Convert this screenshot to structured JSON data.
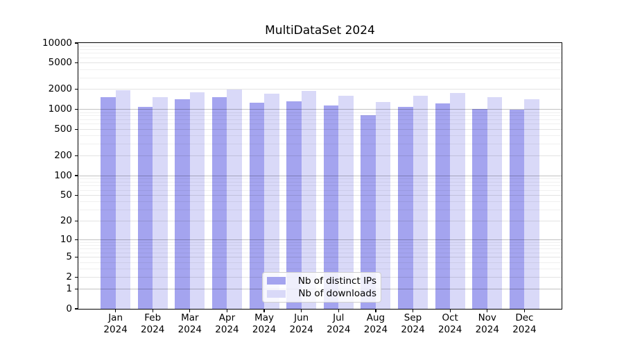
{
  "title": "MultiDataSet 2024",
  "chart_data": {
    "type": "bar",
    "title": "MultiDataSet 2024",
    "categories": [
      "Jan",
      "Feb",
      "Mar",
      "Apr",
      "May",
      "Jun",
      "Jul",
      "Aug",
      "Sep",
      "Oct",
      "Nov",
      "Dec"
    ],
    "year": "2024",
    "series": [
      {
        "name": "Nb of distinct IPs",
        "color": "#a4a4ef",
        "values": [
          1545,
          1095,
          1425,
          1520,
          1255,
          1330,
          1150,
          825,
          1105,
          1225,
          1010,
          985
        ]
      },
      {
        "name": "Nb of downloads",
        "color": "#d9d9f8",
        "values": [
          1965,
          1545,
          1830,
          2010,
          1730,
          1900,
          1610,
          1295,
          1620,
          1770,
          1530,
          1415
        ]
      }
    ],
    "yscale": "log1p",
    "ylim": [
      0,
      10000
    ],
    "yticks": [
      0,
      1,
      2,
      5,
      10,
      20,
      50,
      100,
      200,
      500,
      1000,
      2000,
      5000,
      10000
    ],
    "grid": true,
    "legend_position": "lower center",
    "bar_width_fraction": 0.4
  },
  "colors": {
    "frame": "#000000",
    "background": "#ffffff"
  }
}
